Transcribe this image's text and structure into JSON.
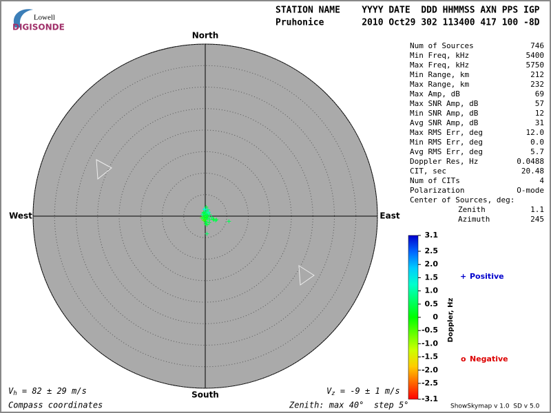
{
  "logo": {
    "top": "Lowell",
    "bottom": "DIGISONDE"
  },
  "header": {
    "names": "STATION NAME    YYYY DATE  DDD HHMMSS AXN PPS IGP",
    "values": "Pruhonice       2010 Oct29 302 113400 417 100 -8D"
  },
  "stats": [
    [
      "Num of Sources",
      "746"
    ],
    [
      "Min Freq, kHz",
      "5400"
    ],
    [
      "Max Freq, kHz",
      "5750"
    ],
    [
      "Min Range, km",
      "212"
    ],
    [
      "Max Range, km",
      "232"
    ],
    [
      "Max Amp, dB",
      "69"
    ],
    [
      "Max SNR Amp, dB",
      "57"
    ],
    [
      "Min SNR Amp, dB",
      "12"
    ],
    [
      "Avg SNR Amp, dB",
      "31"
    ],
    [
      "Max RMS Err, deg",
      "12.0"
    ],
    [
      "Min RMS Err, deg",
      "0.0"
    ],
    [
      "Avg RMS Err, deg",
      "5.7"
    ],
    [
      "Doppler Res, Hz",
      "0.0488"
    ],
    [
      "CIT, sec",
      "20.48"
    ],
    [
      "Num of CITs",
      "4"
    ],
    [
      "Polarization",
      "O-mode"
    ]
  ],
  "center": {
    "title": "Center of Sources, deg:",
    "rows": [
      [
        "Zenith",
        "1.1"
      ],
      [
        "Azimuth",
        "245"
      ]
    ]
  },
  "velocity": {
    "h": {
      "symbol": "V",
      "sub": "h",
      "text": " = 82 ± 29 m/s"
    },
    "z": {
      "symbol": "V",
      "sub": "z",
      "text": " = -9 ± 1 m/s"
    }
  },
  "footer": {
    "left": "Compass coordinates",
    "zenith": "Zenith: max 40°  step 5°",
    "version": "ShowSkymap v 1.0  SD v 5.0"
  },
  "chart_data": {
    "type": "scatter",
    "x": [
      0.2,
      -0.1,
      0.6,
      0.3,
      -0.3,
      0.1,
      0.4,
      -0.1,
      0.3,
      -0.3,
      0.1,
      0.4,
      -0.2,
      0.2,
      -0.8,
      -0.4,
      0.0,
      0.6,
      -0.3,
      0.1,
      0.1,
      0.4,
      1.0,
      1.5,
      1.8,
      2.0,
      2.4,
      2.6,
      1.0,
      0.8,
      5.5,
      0.4,
      -0.6,
      -0.4,
      0.5,
      -0.1,
      0.3,
      0.9,
      -0.1,
      0.4
    ],
    "y": [
      2.1,
      1.7,
      1.5,
      1.2,
      0.9,
      0.8,
      0.6,
      0.4,
      0.3,
      0.1,
      0.0,
      -0.1,
      -0.3,
      -0.4,
      -0.4,
      -0.5,
      -0.7,
      -0.5,
      -1.0,
      -1.2,
      -1.8,
      -2.0,
      -0.8,
      -0.3,
      -0.7,
      -0.8,
      -1.0,
      -0.8,
      0.4,
      0.9,
      -1.2,
      -4.1,
      0.4,
      0.7,
      0.1,
      -0.8,
      -1.5,
      -1.5,
      1.5,
      -0.4
    ],
    "doppler": [
      0.3,
      1.2,
      0.8,
      0.5,
      0.4,
      0.6,
      1.0,
      0.3,
      0.5,
      0.2,
      0.4,
      0.6,
      -0.2,
      0.3,
      -0.3,
      0.5,
      0.4,
      0.7,
      -0.4,
      0.2,
      0.4,
      0.3,
      0.5,
      0.6,
      0.4,
      0.3,
      0.5,
      0.4,
      0.7,
      1.1,
      0.5,
      0.6,
      0.9,
      0.4,
      0.3,
      -0.2,
      0.5,
      0.4,
      1.3,
      0.2
    ],
    "xlim": [
      -40,
      40
    ],
    "ylim": [
      -40,
      40
    ],
    "rticks": [
      5,
      10,
      15,
      20,
      25,
      30,
      35,
      40
    ],
    "directions": {
      "north": "North",
      "south": "South",
      "west": "West",
      "east": "East"
    },
    "colorbar": {
      "label": "Doppler, Hz",
      "lim": [
        -3.1,
        3.1
      ],
      "ticks": [
        3.1,
        2.5,
        {
          "value": 2.0,
          "label": "2.0"
        },
        1.5,
        {
          "value": 1.0,
          "label": "1.0"
        },
        0.5,
        0,
        -0.5,
        {
          "value": -1.0,
          "label": "-1.0"
        },
        -1.5,
        {
          "value": -2.0,
          "label": "-2.0"
        },
        -2.5,
        -3.1
      ]
    },
    "legend": {
      "positive": {
        "marker": "+",
        "text": "Positive",
        "color": "#0000cc"
      },
      "negative": {
        "marker": "o",
        "text": "Negative",
        "color": "#dd0000"
      }
    }
  }
}
